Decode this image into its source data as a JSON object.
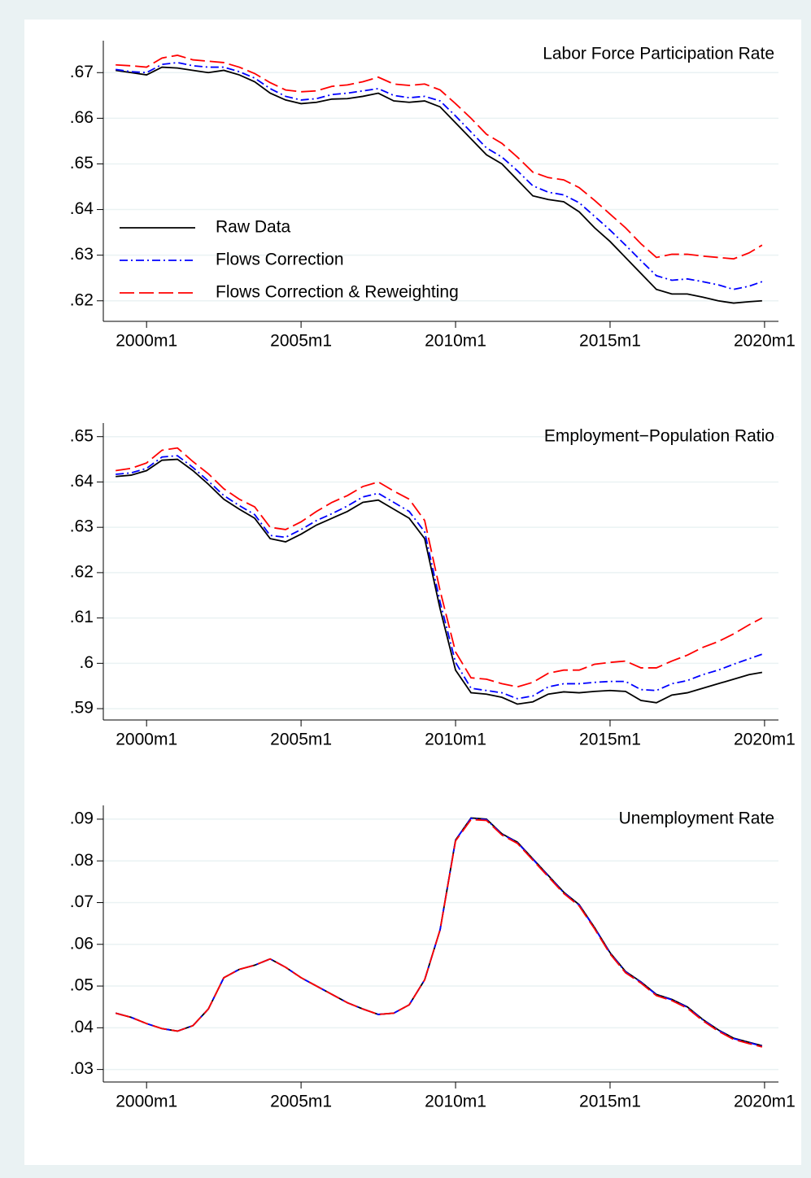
{
  "chart_data": [
    {
      "type": "line",
      "title": "Labor Force Participation Rate",
      "x": [
        1999,
        1999.5,
        2000,
        2000.5,
        2001,
        2001.5,
        2002,
        2002.5,
        2003,
        2003.5,
        2004,
        2004.5,
        2005,
        2005.5,
        2006,
        2006.5,
        2007,
        2007.5,
        2008,
        2008.5,
        2009,
        2009.5,
        2010,
        2010.5,
        2011,
        2011.5,
        2012,
        2012.5,
        2013,
        2013.5,
        2014,
        2014.5,
        2015,
        2015.5,
        2016,
        2016.5,
        2017,
        2017.5,
        2018,
        2018.5,
        2019,
        2019.5,
        2019.92
      ],
      "series": [
        {
          "name": "Raw Data",
          "color": "#000000",
          "dash": "solid",
          "values": [
            0.6705,
            0.67,
            0.6695,
            0.6712,
            0.671,
            0.6705,
            0.67,
            0.6705,
            0.6695,
            0.668,
            0.6655,
            0.664,
            0.6632,
            0.6635,
            0.6642,
            0.6643,
            0.6648,
            0.6655,
            0.6638,
            0.6635,
            0.6638,
            0.6625,
            0.659,
            0.6555,
            0.652,
            0.65,
            0.6465,
            0.643,
            0.6422,
            0.6417,
            0.6395,
            0.636,
            0.633,
            0.6295,
            0.626,
            0.6225,
            0.6215,
            0.6215,
            0.6208,
            0.62,
            0.6195,
            0.6198,
            0.62
          ]
        },
        {
          "name": "Flows Correction",
          "color": "#0000ff",
          "dash": "dashdot",
          "values": [
            0.6707,
            0.6702,
            0.67,
            0.6718,
            0.6722,
            0.6715,
            0.6712,
            0.6712,
            0.6702,
            0.6688,
            0.6665,
            0.6648,
            0.664,
            0.6643,
            0.6652,
            0.6655,
            0.666,
            0.6665,
            0.665,
            0.6645,
            0.6648,
            0.6638,
            0.6605,
            0.657,
            0.6535,
            0.6515,
            0.6485,
            0.6452,
            0.6438,
            0.6432,
            0.6415,
            0.6385,
            0.6355,
            0.6322,
            0.6288,
            0.6255,
            0.6245,
            0.6248,
            0.6242,
            0.6235,
            0.6225,
            0.6232,
            0.6242
          ]
        },
        {
          "name": "Flows Correction & Reweighting",
          "color": "#ff0000",
          "dash": "longdash",
          "values": [
            0.6717,
            0.6715,
            0.6712,
            0.6732,
            0.6738,
            0.6728,
            0.6725,
            0.6722,
            0.6712,
            0.6698,
            0.6678,
            0.6662,
            0.6658,
            0.666,
            0.667,
            0.6673,
            0.668,
            0.669,
            0.6675,
            0.6672,
            0.6675,
            0.6662,
            0.6632,
            0.66,
            0.6565,
            0.6545,
            0.6515,
            0.6482,
            0.647,
            0.6465,
            0.6448,
            0.642,
            0.639,
            0.636,
            0.6325,
            0.6295,
            0.6302,
            0.6302,
            0.6298,
            0.6295,
            0.6292,
            0.6305,
            0.6322
          ]
        }
      ],
      "xlim": [
        1998.6,
        2020.45
      ],
      "xticks": [
        {
          "value": 2000,
          "label": "2000m1"
        },
        {
          "value": 2005,
          "label": "2005m1"
        },
        {
          "value": 2010,
          "label": "2010m1"
        },
        {
          "value": 2015,
          "label": "2015m1"
        },
        {
          "value": 2020,
          "label": "2020m1"
        }
      ],
      "ylim": [
        0.6155,
        0.677
      ],
      "yticks": [
        {
          "value": 0.62,
          "label": ".62"
        },
        {
          "value": 0.63,
          "label": ".63"
        },
        {
          "value": 0.64,
          "label": ".64"
        },
        {
          "value": 0.65,
          "label": ".65"
        },
        {
          "value": 0.66,
          "label": ".66"
        },
        {
          "value": 0.67,
          "label": ".67"
        }
      ],
      "grid": true,
      "legend": "lower left"
    },
    {
      "type": "line",
      "title": "Employment−Population Ratio",
      "x": [
        1999,
        1999.5,
        2000,
        2000.5,
        2001,
        2001.5,
        2002,
        2002.5,
        2003,
        2003.5,
        2004,
        2004.5,
        2005,
        2005.5,
        2006,
        2006.5,
        2007,
        2007.5,
        2008,
        2008.5,
        2009,
        2009.5,
        2010,
        2010.5,
        2011,
        2011.5,
        2012,
        2012.5,
        2013,
        2013.5,
        2014,
        2014.5,
        2015,
        2015.5,
        2016,
        2016.5,
        2017,
        2017.5,
        2018,
        2018.5,
        2019,
        2019.5,
        2019.92
      ],
      "series": [
        {
          "color": "#000000",
          "dash": "solid",
          "values": [
            0.6412,
            0.6415,
            0.6425,
            0.6448,
            0.645,
            0.6425,
            0.6395,
            0.6362,
            0.634,
            0.632,
            0.6275,
            0.6268,
            0.6285,
            0.6305,
            0.632,
            0.6335,
            0.6355,
            0.636,
            0.634,
            0.632,
            0.6275,
            0.612,
            0.5985,
            0.5935,
            0.5932,
            0.5925,
            0.591,
            0.5915,
            0.5932,
            0.5937,
            0.5935,
            0.5938,
            0.594,
            0.5938,
            0.5918,
            0.5913,
            0.593,
            0.5935,
            0.5945,
            0.5955,
            0.5965,
            0.5975,
            0.598
          ]
        },
        {
          "color": "#0000ff",
          "dash": "dashdot",
          "values": [
            0.6417,
            0.642,
            0.643,
            0.6455,
            0.6458,
            0.6432,
            0.6402,
            0.637,
            0.6348,
            0.6328,
            0.6282,
            0.6278,
            0.6295,
            0.6315,
            0.633,
            0.6347,
            0.6367,
            0.6375,
            0.6355,
            0.6335,
            0.629,
            0.6135,
            0.6002,
            0.5945,
            0.594,
            0.5935,
            0.5922,
            0.5928,
            0.5948,
            0.5955,
            0.5955,
            0.5958,
            0.596,
            0.596,
            0.5942,
            0.594,
            0.5955,
            0.5962,
            0.5975,
            0.5985,
            0.5998,
            0.601,
            0.602
          ]
        },
        {
          "color": "#ff0000",
          "dash": "longdash",
          "values": [
            0.6425,
            0.643,
            0.6442,
            0.647,
            0.6475,
            0.6445,
            0.6418,
            0.6385,
            0.6362,
            0.6345,
            0.63,
            0.6295,
            0.6312,
            0.6335,
            0.6355,
            0.637,
            0.639,
            0.64,
            0.638,
            0.6362,
            0.6315,
            0.616,
            0.6025,
            0.5968,
            0.5965,
            0.5955,
            0.5948,
            0.5958,
            0.5978,
            0.5985,
            0.5985,
            0.5998,
            0.6002,
            0.6005,
            0.599,
            0.599,
            0.6005,
            0.6018,
            0.6035,
            0.6048,
            0.6065,
            0.6085,
            0.61
          ]
        }
      ],
      "xlim": [
        1998.6,
        2020.45
      ],
      "xticks": [
        {
          "value": 2000,
          "label": "2000m1"
        },
        {
          "value": 2005,
          "label": "2005m1"
        },
        {
          "value": 2010,
          "label": "2010m1"
        },
        {
          "value": 2015,
          "label": "2015m1"
        },
        {
          "value": 2020,
          "label": "2020m1"
        }
      ],
      "ylim": [
        0.5875,
        0.653
      ],
      "yticks": [
        {
          "value": 0.59,
          "label": ".59"
        },
        {
          "value": 0.6,
          "label": ".6"
        },
        {
          "value": 0.61,
          "label": ".61"
        },
        {
          "value": 0.62,
          "label": ".62"
        },
        {
          "value": 0.63,
          "label": ".63"
        },
        {
          "value": 0.64,
          "label": ".64"
        },
        {
          "value": 0.65,
          "label": ".65"
        }
      ],
      "grid": true
    },
    {
      "type": "line",
      "title": "Unemployment Rate",
      "x": [
        1999,
        1999.5,
        2000,
        2000.5,
        2001,
        2001.5,
        2002,
        2002.5,
        2003,
        2003.5,
        2004,
        2004.5,
        2005,
        2005.5,
        2006,
        2006.5,
        2007,
        2007.5,
        2008,
        2008.5,
        2009,
        2009.5,
        2010,
        2010.5,
        2011,
        2011.5,
        2012,
        2012.5,
        2013,
        2013.5,
        2014,
        2014.5,
        2015,
        2015.5,
        2016,
        2016.5,
        2017,
        2017.5,
        2018,
        2018.5,
        2019,
        2019.5,
        2019.92
      ],
      "series": [
        {
          "color": "#000000",
          "dash": "solid",
          "values": [
            0.0435,
            0.0425,
            0.041,
            0.0398,
            0.0392,
            0.0405,
            0.0445,
            0.052,
            0.054,
            0.055,
            0.0565,
            0.0545,
            0.052,
            0.05,
            0.048,
            0.046,
            0.0445,
            0.0432,
            0.0435,
            0.0455,
            0.0515,
            0.0635,
            0.085,
            0.0903,
            0.09,
            0.0865,
            0.0845,
            0.0805,
            0.0765,
            0.0725,
            0.0695,
            0.064,
            0.058,
            0.0535,
            0.051,
            0.048,
            0.0468,
            0.045,
            0.042,
            0.0395,
            0.0375,
            0.0365,
            0.0357
          ]
        },
        {
          "color": "#0000ff",
          "dash": "dashdot",
          "values": [
            0.0435,
            0.0425,
            0.041,
            0.0398,
            0.0392,
            0.0405,
            0.0445,
            0.052,
            0.054,
            0.055,
            0.0565,
            0.0545,
            0.052,
            0.05,
            0.048,
            0.046,
            0.0445,
            0.0432,
            0.0435,
            0.0455,
            0.0515,
            0.0635,
            0.085,
            0.0902,
            0.0899,
            0.0864,
            0.0844,
            0.0804,
            0.0764,
            0.0724,
            0.0694,
            0.0639,
            0.0579,
            0.0534,
            0.0509,
            0.0479,
            0.0467,
            0.0449,
            0.0419,
            0.0394,
            0.0374,
            0.0364,
            0.0356
          ]
        },
        {
          "color": "#ff0000",
          "dash": "longdash",
          "values": [
            0.0435,
            0.0425,
            0.041,
            0.0398,
            0.0392,
            0.0405,
            0.0445,
            0.052,
            0.054,
            0.055,
            0.0565,
            0.0545,
            0.052,
            0.05,
            0.048,
            0.046,
            0.0445,
            0.0432,
            0.0435,
            0.0455,
            0.0515,
            0.0635,
            0.0848,
            0.0899,
            0.0897,
            0.0862,
            0.0842,
            0.0802,
            0.0762,
            0.0722,
            0.0692,
            0.0637,
            0.0577,
            0.0532,
            0.0507,
            0.0477,
            0.0465,
            0.0447,
            0.0417,
            0.0392,
            0.0372,
            0.0362,
            0.0354
          ]
        }
      ],
      "xlim": [
        1998.6,
        2020.45
      ],
      "xticks": [
        {
          "value": 2000,
          "label": "2000m1"
        },
        {
          "value": 2005,
          "label": "2005m1"
        },
        {
          "value": 2010,
          "label": "2010m1"
        },
        {
          "value": 2015,
          "label": "2015m1"
        },
        {
          "value": 2020,
          "label": "2020m1"
        }
      ],
      "ylim": [
        0.027,
        0.0933
      ],
      "yticks": [
        {
          "value": 0.03,
          "label": ".03"
        },
        {
          "value": 0.04,
          "label": ".04"
        },
        {
          "value": 0.05,
          "label": ".05"
        },
        {
          "value": 0.06,
          "label": ".06"
        },
        {
          "value": 0.07,
          "label": ".07"
        },
        {
          "value": 0.08,
          "label": ".08"
        },
        {
          "value": 0.09,
          "label": ".09"
        }
      ],
      "grid": true
    }
  ]
}
